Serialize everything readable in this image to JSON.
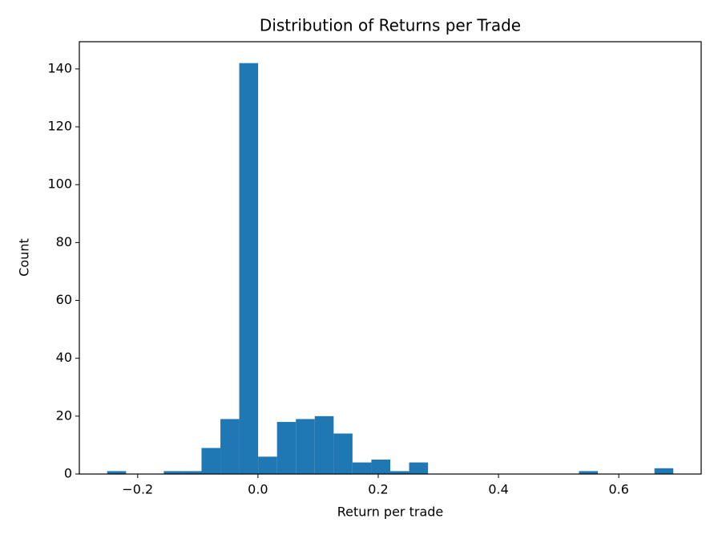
{
  "chart_data": {
    "type": "histogram",
    "title": "Distribution of Returns per Trade",
    "x_label": "Return per trade",
    "y_label": "Count",
    "color": "#1f77b4",
    "bins": [
      -0.2507,
      -0.2193,
      -0.1879,
      -0.1566,
      -0.1252,
      -0.0938,
      -0.0624,
      -0.0311,
      0.0003,
      0.0317,
      0.0631,
      0.0945,
      0.1259,
      0.1572,
      0.1886,
      0.22,
      0.2514,
      0.2828,
      0.3141,
      0.3455,
      0.3769,
      0.4083,
      0.4397,
      0.4711,
      0.5024,
      0.5338,
      0.5652,
      0.5966,
      0.628,
      0.6593,
      0.6907
    ],
    "counts": [
      1,
      0,
      0,
      1,
      1,
      9,
      19,
      142,
      6,
      18,
      19,
      20,
      14,
      4,
      5,
      1,
      4,
      0,
      0,
      0,
      0,
      0,
      0,
      0,
      0,
      1,
      0,
      0,
      0,
      2
    ],
    "xlim": [
      -0.297,
      0.737
    ],
    "ylim": [
      0,
      149.4
    ],
    "xticks": [
      {
        "value": -0.2,
        "label": "−0.2"
      },
      {
        "value": 0,
        "label": "0.0"
      },
      0.2,
      0.4,
      0.6
    ],
    "yticks": [
      0,
      20,
      40,
      60,
      80,
      100,
      120,
      140
    ]
  }
}
